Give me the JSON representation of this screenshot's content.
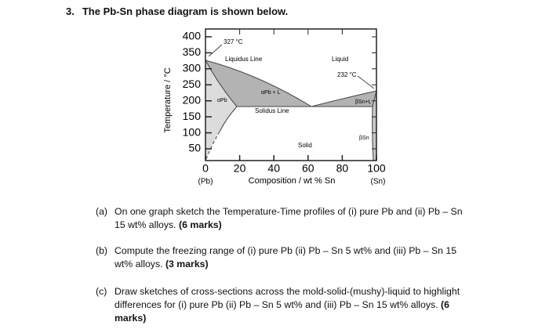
{
  "heading": {
    "number": "3.",
    "text": "The Pb-Sn phase diagram is shown below."
  },
  "figure": {
    "y_axis_label": "Temperature / °C",
    "x_axis_label": "Composition / wt % Sn",
    "yticks": [
      400,
      350,
      300,
      250,
      200,
      150,
      100,
      50
    ],
    "xticks": [
      0,
      20,
      40,
      60,
      80,
      100
    ],
    "x_end_labels": [
      "(Pb)",
      "(Sn)"
    ],
    "annotations": {
      "pb_melting": "327 °C",
      "liquidus": "Liquidus Line",
      "liquid": "Liquid",
      "sn_melting": "232 °C",
      "alpha_liquid": "αPb + L",
      "alpha": "αPb",
      "solidus": "Solidus Line",
      "beta_liquid": "βSn+L",
      "beta": "βSn",
      "solid": "Solid"
    }
  },
  "questions": [
    {
      "label": "(a)",
      "text": "On one graph sketch the Temperature-Time profiles of (i) pure Pb and (ii) Pb – Sn 15 wt% alloys.",
      "marks": "(6 marks)"
    },
    {
      "label": "(b)",
      "text": "Compute the freezing range of (i) pure Pb (ii) Pb – Sn 5 wt% and (iii) Pb – Sn 15 wt% alloys.",
      "marks": "(3 marks)"
    },
    {
      "label": "(c)",
      "text": "Draw sketches of cross-sections across the mold-solid-(mushy)-liquid to highlight differences for (i) pure Pb (ii) Pb – Sn 5 wt% and (iii) Pb – Sn 15 wt% alloys.",
      "marks": "(6 marks)"
    }
  ]
}
